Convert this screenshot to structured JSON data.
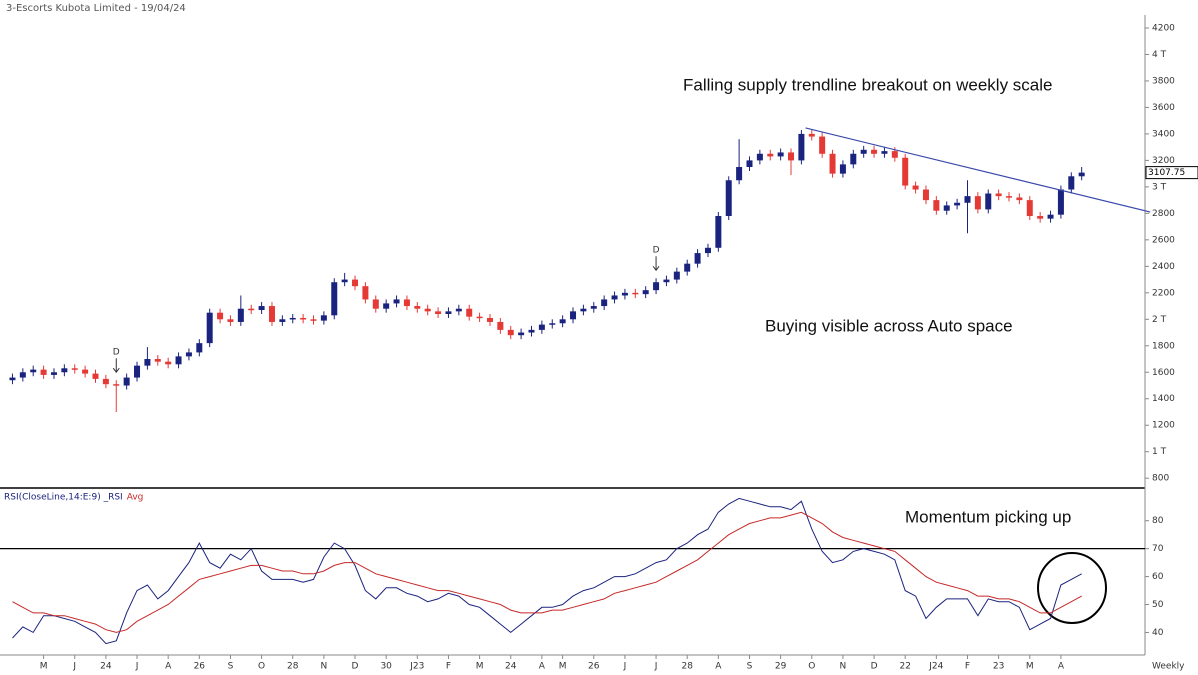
{
  "chart_data": [
    {
      "type": "candlestick",
      "title": "3-Escorts Kubota Limited - 19/04/24",
      "annotations": [
        "Falling supply trendline breakout on weekly scale",
        "Buying visible across Auto space"
      ],
      "up_color": "#1a237e",
      "down_color": "#e53935",
      "xlim": [
        -1.2,
        109.1
      ],
      "ylim": [
        726,
        4298
      ],
      "yticks": [
        4200,
        {
          "value": 4000,
          "label": "4 T"
        },
        3800,
        3600,
        3400,
        3200,
        {
          "value": 3000,
          "label": "3 T"
        },
        2800,
        2600,
        2400,
        2200,
        {
          "value": 2000,
          "label": "2 T"
        },
        1800,
        1600,
        1400,
        1200,
        {
          "value": 1000,
          "label": "1 T"
        },
        800
      ],
      "open": [
        1540,
        1560,
        1600,
        1620,
        1580,
        1600,
        1630,
        1620,
        1590,
        1550,
        1510,
        1500,
        1560,
        1650,
        1700,
        1680,
        1660,
        1720,
        1750,
        1820,
        2050,
        2000,
        1980,
        2080,
        2070,
        2100,
        1980,
        2000,
        2010,
        2000,
        1990,
        2030,
        2280,
        2300,
        2250,
        2150,
        2080,
        2120,
        2150,
        2100,
        2080,
        2060,
        2040,
        2060,
        2080,
        2020,
        2010,
        1980,
        1920,
        1880,
        1900,
        1920,
        1960,
        1970,
        2000,
        2060,
        2080,
        2100,
        2150,
        2180,
        2200,
        2190,
        2220,
        2280,
        2300,
        2360,
        2420,
        2500,
        2540,
        2780,
        3050,
        3150,
        3200,
        3250,
        3230,
        3260,
        3200,
        3400,
        3380,
        3250,
        3100,
        3170,
        3250,
        3280,
        3250,
        3270,
        3220,
        3010,
        2980,
        2900,
        2820,
        2860,
        2880,
        2930,
        2830,
        2950,
        2930,
        2920,
        2900,
        2780,
        2760,
        2790,
        2980,
        3080
      ],
      "high": [
        1590,
        1630,
        1650,
        1650,
        1630,
        1660,
        1660,
        1650,
        1620,
        1580,
        1540,
        1590,
        1680,
        1790,
        1730,
        1710,
        1750,
        1780,
        1850,
        2080,
        2080,
        2030,
        2180,
        2110,
        2130,
        2130,
        2030,
        2040,
        2040,
        2030,
        2060,
        2310,
        2350,
        2330,
        2280,
        2180,
        2150,
        2180,
        2180,
        2130,
        2110,
        2090,
        2090,
        2110,
        2110,
        2050,
        2040,
        2010,
        1950,
        1930,
        1950,
        1990,
        2000,
        2030,
        2090,
        2110,
        2130,
        2180,
        2210,
        2230,
        2230,
        2250,
        2310,
        2330,
        2390,
        2450,
        2530,
        2570,
        2810,
        3080,
        3360,
        3230,
        3280,
        3280,
        3290,
        3290,
        3430,
        3430,
        3410,
        3280,
        3200,
        3280,
        3310,
        3310,
        3300,
        3300,
        3250,
        3040,
        3010,
        2930,
        2890,
        2910,
        3050,
        2960,
        2980,
        2980,
        2960,
        2950,
        2930,
        2810,
        2820,
        3010,
        3110,
        3150
      ],
      "low": [
        1510,
        1530,
        1570,
        1550,
        1550,
        1570,
        1590,
        1560,
        1520,
        1480,
        1300,
        1470,
        1530,
        1620,
        1650,
        1630,
        1630,
        1690,
        1720,
        1790,
        1970,
        1950,
        1950,
        2040,
        2040,
        1950,
        1950,
        1970,
        1970,
        1960,
        1960,
        2000,
        2250,
        2220,
        2120,
        2050,
        2050,
        2090,
        2070,
        2050,
        2030,
        2010,
        2010,
        2030,
        1990,
        1980,
        1950,
        1890,
        1850,
        1850,
        1870,
        1890,
        1930,
        1940,
        1970,
        2030,
        2050,
        2070,
        2120,
        2150,
        2160,
        2160,
        2190,
        2250,
        2270,
        2330,
        2390,
        2470,
        2510,
        2750,
        3020,
        3120,
        3170,
        3200,
        3200,
        3090,
        3170,
        3350,
        3220,
        3070,
        3070,
        3140,
        3220,
        3220,
        3220,
        3190,
        2980,
        2950,
        2870,
        2790,
        2790,
        2830,
        2650,
        2800,
        2800,
        2900,
        2890,
        2870,
        2750,
        2730,
        2730,
        2760,
        2950,
        3050
      ],
      "close": [
        1560,
        1600,
        1620,
        1580,
        1600,
        1630,
        1620,
        1590,
        1550,
        1510,
        1500,
        1560,
        1650,
        1700,
        1680,
        1660,
        1720,
        1750,
        1820,
        2050,
        2000,
        1980,
        2080,
        2070,
        2100,
        1980,
        2000,
        2010,
        2000,
        1990,
        2030,
        2280,
        2300,
        2250,
        2150,
        2080,
        2120,
        2150,
        2100,
        2080,
        2060,
        2040,
        2060,
        2080,
        2020,
        2010,
        1980,
        1920,
        1880,
        1900,
        1920,
        1960,
        1970,
        2000,
        2060,
        2080,
        2100,
        2150,
        2180,
        2200,
        2190,
        2220,
        2280,
        2300,
        2360,
        2420,
        2500,
        2540,
        2780,
        3050,
        3150,
        3200,
        3250,
        3230,
        3260,
        3200,
        3400,
        3380,
        3250,
        3100,
        3170,
        3250,
        3280,
        3250,
        3270,
        3220,
        3010,
        2980,
        2900,
        2820,
        2860,
        2880,
        2930,
        2830,
        2950,
        2930,
        2920,
        2900,
        2780,
        2760,
        2790,
        2980,
        3080,
        3107.75
      ],
      "markers": [
        {
          "x": 10,
          "label": "D"
        },
        {
          "x": 62,
          "label": "D"
        }
      ],
      "trendline": {
        "x": [
          76.4,
          109.6
        ],
        "values": [
          3445,
          2810
        ],
        "color": "#3949ab"
      }
    },
    {
      "type": "line",
      "annotations": [
        "Momentum picking up"
      ],
      "xlim": [
        -1.2,
        109.1
      ],
      "ylim": [
        33,
        91
      ],
      "yticks": [
        40,
        50,
        60,
        70,
        80
      ],
      "hline": 70,
      "xticks": [
        {
          "value": 3,
          "label": "M"
        },
        {
          "value": 6,
          "label": "J"
        },
        {
          "value": 9,
          "label": "24"
        },
        {
          "value": 12,
          "label": "J"
        },
        {
          "value": 15,
          "label": "A"
        },
        {
          "value": 18,
          "label": "26"
        },
        {
          "value": 21,
          "label": "S"
        },
        {
          "value": 24,
          "label": "O"
        },
        {
          "value": 27,
          "label": "28"
        },
        {
          "value": 30,
          "label": "N"
        },
        {
          "value": 33,
          "label": "D"
        },
        {
          "value": 36,
          "label": "30"
        },
        {
          "value": 39,
          "label": "J23"
        },
        {
          "value": 42,
          "label": "F"
        },
        {
          "value": 45,
          "label": "M"
        },
        {
          "value": 48,
          "label": "24"
        },
        {
          "value": 51,
          "label": "A"
        },
        {
          "value": 53,
          "label": "M"
        },
        {
          "value": 56,
          "label": "26"
        },
        {
          "value": 59,
          "label": "J"
        },
        {
          "value": 62,
          "label": "J"
        },
        {
          "value": 65,
          "label": "28"
        },
        {
          "value": 68,
          "label": "A"
        },
        {
          "value": 71,
          "label": "S"
        },
        {
          "value": 74,
          "label": "29"
        },
        {
          "value": 77,
          "label": "O"
        },
        {
          "value": 80,
          "label": "N"
        },
        {
          "value": 83,
          "label": "D"
        },
        {
          "value": 86,
          "label": "22"
        },
        {
          "value": 89,
          "label": "J24"
        },
        {
          "value": 92,
          "label": "F"
        },
        {
          "value": 95,
          "label": "23"
        },
        {
          "value": 98,
          "label": "M"
        },
        {
          "value": 101,
          "label": "A"
        }
      ],
      "x_label": "Weekly",
      "series": [
        {
          "name": "RSI(CloseLine,14:E:9) _RSI",
          "color": "#1a237e",
          "values": [
            38,
            42,
            40,
            46,
            46,
            45,
            44,
            42,
            40,
            36,
            37,
            47,
            55,
            57,
            52,
            55,
            60,
            65,
            72,
            65,
            63,
            68,
            66,
            70,
            62,
            59,
            59,
            59,
            58,
            59,
            67,
            72,
            70,
            64,
            55,
            52,
            56,
            56,
            54,
            53,
            51,
            52,
            54,
            53,
            50,
            49,
            46,
            43,
            40,
            43,
            46,
            49,
            49,
            50,
            53,
            55,
            56,
            58,
            60,
            60,
            61,
            63,
            65,
            66,
            70,
            72,
            75,
            77,
            83,
            86,
            88,
            87,
            86,
            85,
            85,
            84,
            87,
            77,
            69,
            65,
            66,
            69,
            70,
            69,
            68,
            66,
            55,
            53,
            45,
            49,
            52,
            52,
            52,
            46,
            52,
            51,
            51,
            49,
            41,
            43,
            45,
            57,
            59,
            61
          ]
        },
        {
          "name": "Avg",
          "color": "#c62828",
          "values": [
            51,
            49,
            47,
            47,
            46,
            46,
            45,
            44,
            43,
            41,
            40,
            41,
            44,
            46,
            48,
            50,
            53,
            56,
            59,
            60,
            61,
            62,
            63,
            64,
            64,
            63,
            62,
            62,
            61,
            61,
            62,
            64,
            65,
            65,
            63,
            61,
            60,
            59,
            58,
            57,
            56,
            55,
            55,
            54,
            53,
            52,
            51,
            50,
            48,
            47,
            47,
            47,
            48,
            48,
            49,
            50,
            51,
            52,
            54,
            55,
            56,
            57,
            58,
            60,
            62,
            64,
            66,
            69,
            72,
            75,
            77,
            79,
            80,
            81,
            81,
            82,
            83,
            81,
            79,
            76,
            74,
            73,
            72,
            71,
            70,
            69,
            66,
            63,
            60,
            58,
            57,
            56,
            55,
            53,
            53,
            52,
            52,
            51,
            49,
            47,
            47,
            49,
            51,
            53
          ]
        }
      ]
    }
  ]
}
